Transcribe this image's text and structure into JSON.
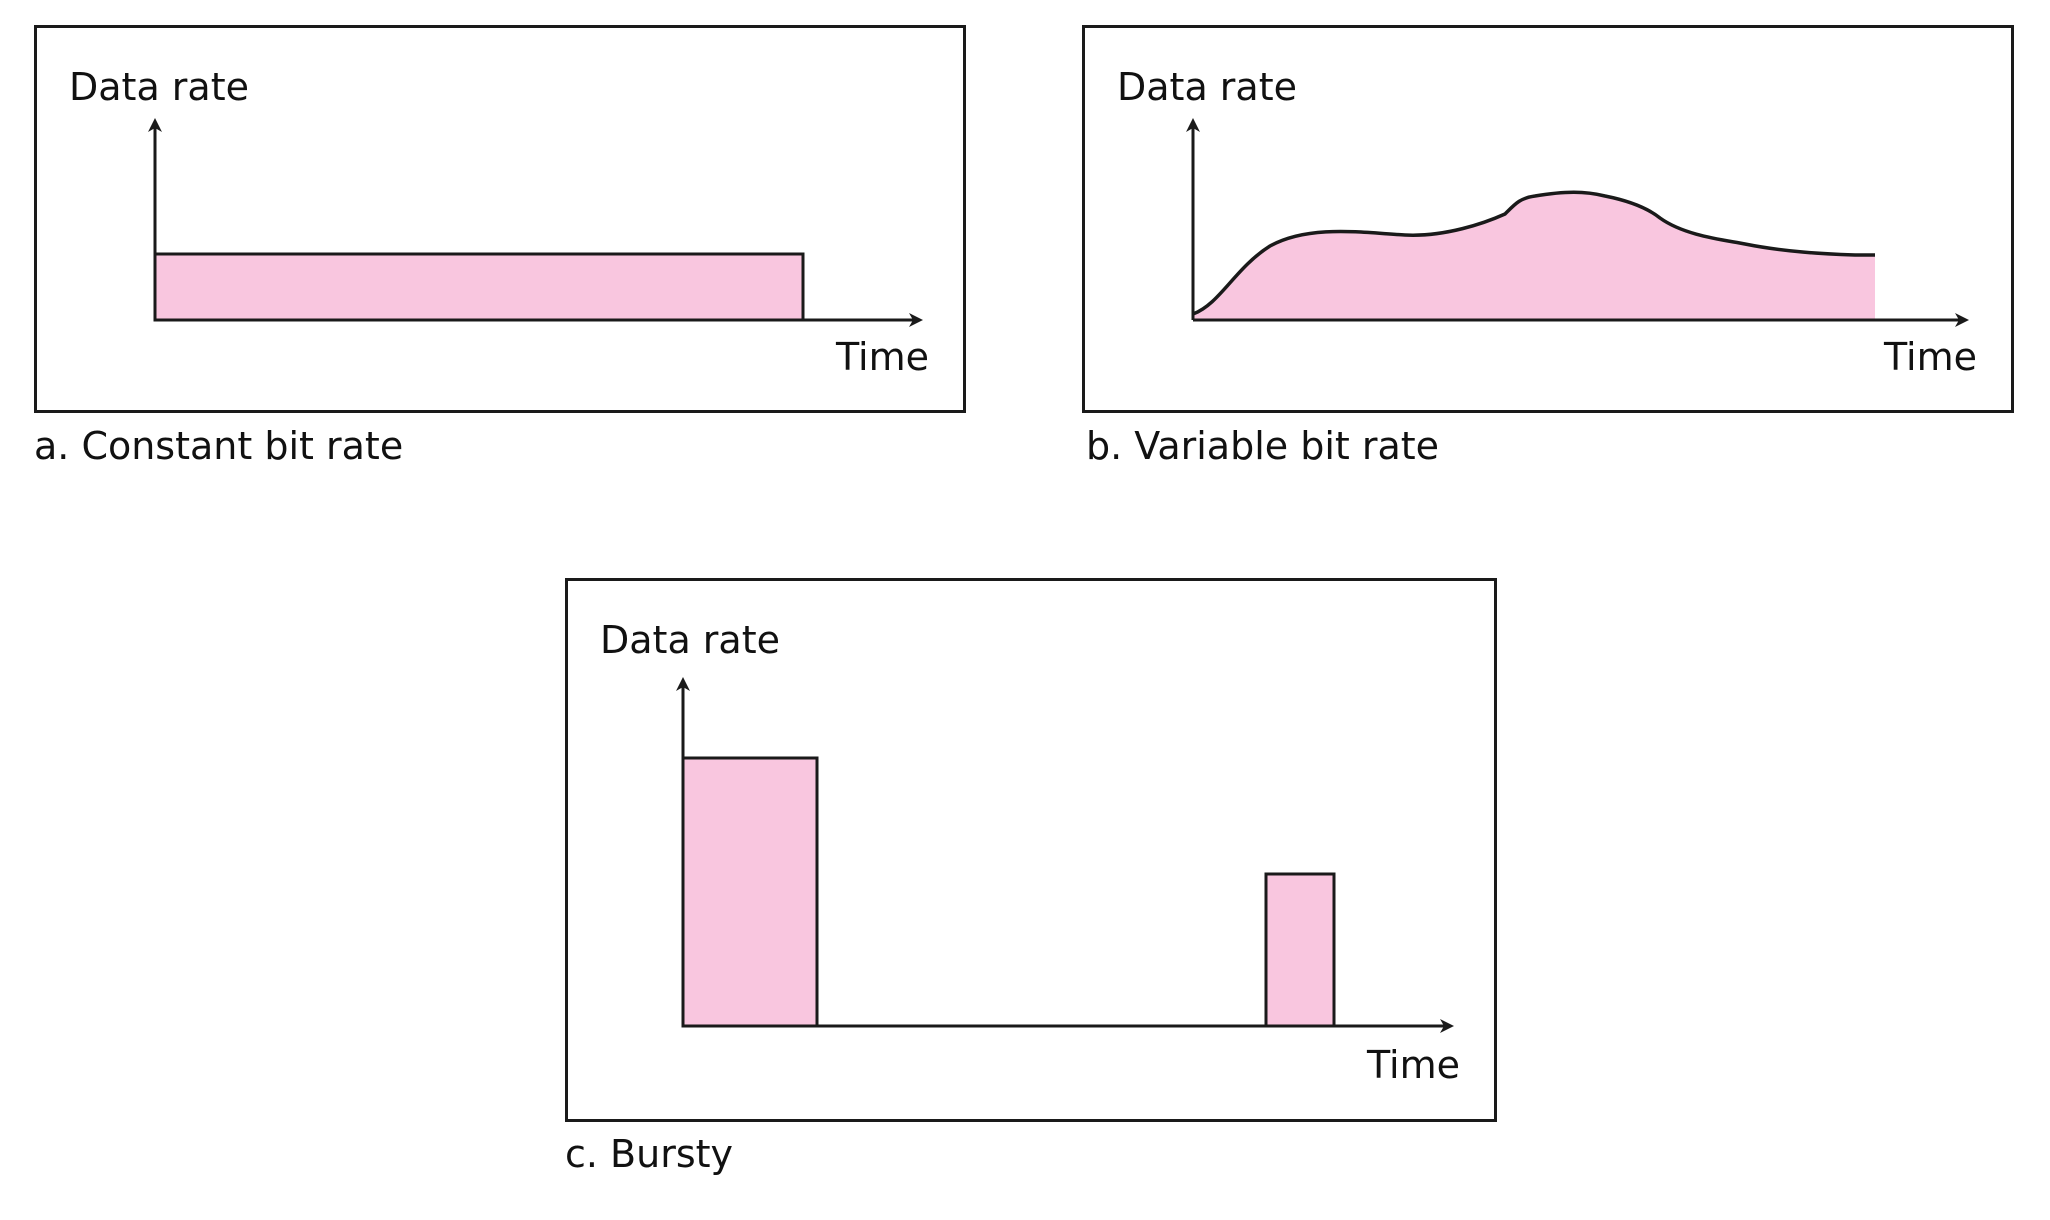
{
  "colors": {
    "fill": "#f9c6df",
    "stroke": "#1a1a1a"
  },
  "panels": {
    "a": {
      "ylabel": "Data rate",
      "xlabel": "Time",
      "caption": "a. Constant bit rate"
    },
    "b": {
      "ylabel": "Data rate",
      "xlabel": "Time",
      "caption": "b. Variable bit rate"
    },
    "c": {
      "ylabel": "Data rate",
      "xlabel": "Time",
      "caption": "c. Bursty"
    }
  }
}
